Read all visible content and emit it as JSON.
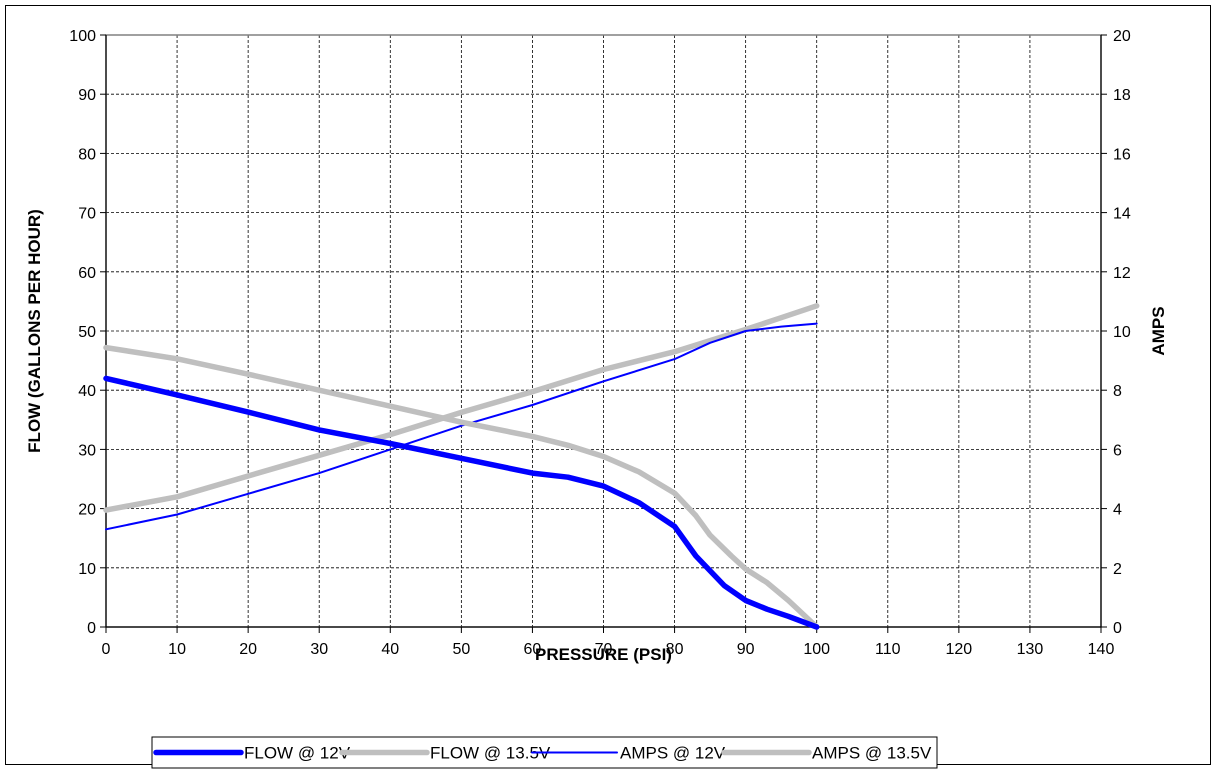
{
  "chart_data": {
    "type": "line",
    "xlabel": "PRESSURE (PSI)",
    "ylabel": "FLOW (GALLONS PER HOUR)",
    "y2label": "AMPS",
    "xlim": [
      0,
      140
    ],
    "ylim": [
      0,
      100
    ],
    "y2lim": [
      0,
      20
    ],
    "x_ticks": [
      0,
      10,
      20,
      30,
      40,
      50,
      60,
      70,
      80,
      90,
      100,
      110,
      120,
      130,
      140
    ],
    "y_ticks": [
      0,
      10,
      20,
      30,
      40,
      50,
      60,
      70,
      80,
      90,
      100
    ],
    "y2_ticks": [
      0,
      2,
      4,
      6,
      8,
      10,
      12,
      14,
      16,
      18,
      20
    ],
    "grid": true,
    "legend_position": "bottom",
    "series": [
      {
        "name": "FLOW @ 12V",
        "axis": "left",
        "color": "#0000ff",
        "style": "thick",
        "points": [
          [
            0,
            42
          ],
          [
            10,
            39.2
          ],
          [
            20,
            36.3
          ],
          [
            30,
            33.3
          ],
          [
            40,
            31
          ],
          [
            50,
            28.5
          ],
          [
            60,
            26
          ],
          [
            65,
            25.3
          ],
          [
            70,
            23.8
          ],
          [
            75,
            21
          ],
          [
            80,
            17
          ],
          [
            83,
            12
          ],
          [
            87,
            7
          ],
          [
            90,
            4.5
          ],
          [
            93,
            3
          ],
          [
            96,
            1.8
          ],
          [
            100,
            0
          ]
        ]
      },
      {
        "name": "FLOW @ 13.5V",
        "axis": "left",
        "color": "#bfbfbf",
        "style": "thick",
        "points": [
          [
            0,
            47.2
          ],
          [
            10,
            45.3
          ],
          [
            20,
            42.7
          ],
          [
            30,
            40
          ],
          [
            40,
            37.3
          ],
          [
            50,
            34.6
          ],
          [
            60,
            32.2
          ],
          [
            65,
            30.7
          ],
          [
            70,
            28.8
          ],
          [
            75,
            26.2
          ],
          [
            80,
            22.6
          ],
          [
            83,
            18.8
          ],
          [
            85,
            15.5
          ],
          [
            88,
            12
          ],
          [
            90,
            9.8
          ],
          [
            93,
            7.5
          ],
          [
            96,
            4.5
          ],
          [
            100,
            0
          ]
        ]
      },
      {
        "name": "AMPS @ 12V",
        "axis": "right",
        "color": "#0000ff",
        "style": "thin",
        "points": [
          [
            0,
            3.3
          ],
          [
            10,
            3.8
          ],
          [
            20,
            4.5
          ],
          [
            30,
            5.2
          ],
          [
            40,
            6
          ],
          [
            50,
            6.8
          ],
          [
            60,
            7.5
          ],
          [
            70,
            8.3
          ],
          [
            80,
            9.05
          ],
          [
            85,
            9.6
          ],
          [
            90,
            10
          ],
          [
            95,
            10.15
          ],
          [
            100,
            10.25
          ]
        ]
      },
      {
        "name": "AMPS @ 13.5V",
        "axis": "right",
        "color": "#bfbfbf",
        "style": "thick",
        "points": [
          [
            0,
            3.95
          ],
          [
            10,
            4.4
          ],
          [
            20,
            5.1
          ],
          [
            30,
            5.8
          ],
          [
            40,
            6.5
          ],
          [
            50,
            7.25
          ],
          [
            60,
            7.95
          ],
          [
            70,
            8.7
          ],
          [
            80,
            9.3
          ],
          [
            90,
            10.05
          ],
          [
            95,
            10.45
          ],
          [
            100,
            10.85
          ]
        ]
      }
    ]
  }
}
